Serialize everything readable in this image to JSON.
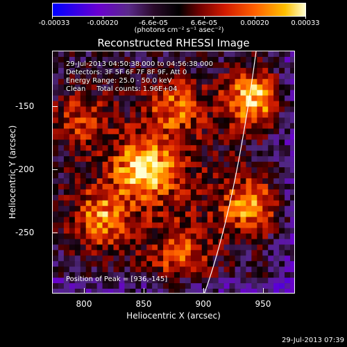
{
  "colorbar": {
    "ticks": [
      "-0.00033",
      "-0.00020",
      "-6.6e-05",
      "6.6e-05",
      "0.00020",
      "0.00033"
    ],
    "unit_label": "(photons cm⁻² s⁻¹ asec⁻²)",
    "colors": [
      "#0000ff",
      "#6a00d0",
      "#000000",
      "#d01a00",
      "#ffc000",
      "#ffffd0"
    ]
  },
  "header": {
    "title": "Reconstructed RHESSI Image"
  },
  "info": {
    "time_range": "29-Jul-2013 04:50:38.000 to 04:56:38.000",
    "detectors": "Detectors: 3F 5F 6F 7F 8F 9F, Att 0",
    "energy": "Energy Range: 25.0 - 50.0 keV",
    "clean": "Clean     Total counts: 1.96E+04",
    "peak": "Position of Peak = [936,-145]"
  },
  "axes": {
    "xlabel": "Heliocentric X (arcsec)",
    "ylabel": "Heliocentric Y (arcsec)",
    "xticks": [
      "800",
      "850",
      "900",
      "950"
    ],
    "yticks": [
      "-150",
      "-200",
      "-250"
    ]
  },
  "footer": {
    "timestamp": "29-Jul-2013 07:39"
  },
  "chart_data": {
    "type": "heatmap",
    "title": "Reconstructed RHESSI Image",
    "xlabel": "Heliocentric X (arcsec)",
    "ylabel": "Heliocentric Y (arcsec)",
    "xlim": [
      778,
      970
    ],
    "ylim": [
      -300,
      -108
    ],
    "color_range": [
      -0.00033,
      0.00033
    ],
    "sources": [
      {
        "x": 936,
        "y": -145,
        "intensity": 1.0
      },
      {
        "x": 850,
        "y": -200,
        "intensity": 0.85
      },
      {
        "x": 935,
        "y": -230,
        "intensity": 0.8
      },
      {
        "x": 815,
        "y": -240,
        "intensity": 0.7
      },
      {
        "x": 875,
        "y": -150,
        "intensity": 0.6
      },
      {
        "x": 880,
        "y": -270,
        "intensity": 0.55
      },
      {
        "x": 800,
        "y": -160,
        "intensity": 0.5
      }
    ],
    "peak": [
      936,
      -145
    ]
  }
}
